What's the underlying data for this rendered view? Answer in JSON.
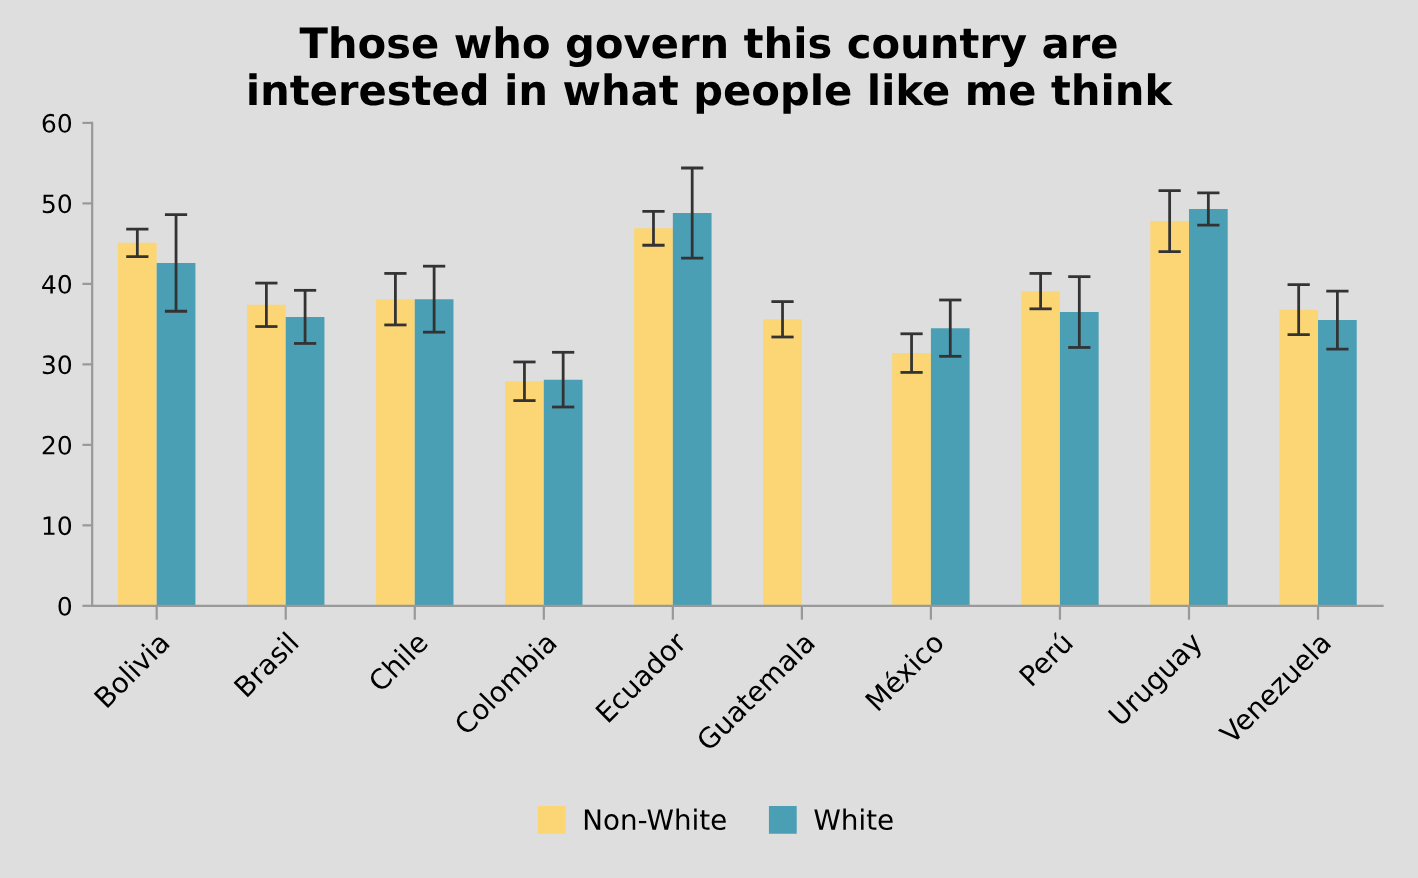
{
  "chart_data": {
    "type": "bar",
    "title": "Those who govern this country are\ninterested in what people like me think",
    "categories": [
      "Bolivia",
      "Brasil",
      "Chile",
      "Colombia",
      "Ecuador",
      "Guatemala",
      "México",
      "Perú",
      "Uruguay",
      "Venezuela"
    ],
    "series": [
      {
        "name": "Non-White",
        "color": "#fcd675",
        "values": [
          45.1,
          37.4,
          38.1,
          27.9,
          46.9,
          35.6,
          31.4,
          39.1,
          47.8,
          36.8
        ],
        "errors": [
          1.7,
          2.7,
          3.2,
          2.4,
          2.1,
          2.2,
          2.4,
          2.2,
          3.8,
          3.1
        ]
      },
      {
        "name": "White",
        "color": "#4a9fb5",
        "values": [
          42.6,
          35.9,
          38.1,
          28.1,
          48.8,
          null,
          34.5,
          36.5,
          49.3,
          35.5
        ],
        "errors": [
          6.0,
          3.3,
          4.1,
          3.4,
          5.6,
          null,
          3.5,
          4.4,
          2.0,
          3.6
        ]
      }
    ],
    "ylim": [
      0,
      60
    ],
    "yticks": [
      0,
      10,
      20,
      30,
      40,
      50,
      60
    ],
    "grid": false,
    "legend": "bottom"
  }
}
